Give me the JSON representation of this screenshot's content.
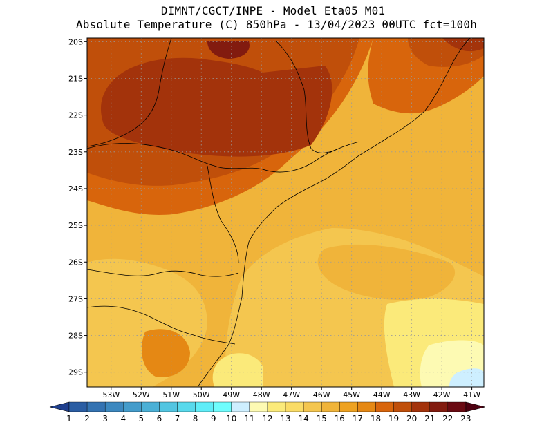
{
  "header": {
    "line1": "DIMNT/CGCT/INPE -  Model Eta05_M01_",
    "line2": "Absolute Temperature (C) 850hPa -  13/04/2023 00UTC fct=100h"
  },
  "map": {
    "lat_labels": [
      "20S",
      "21S",
      "22S",
      "23S",
      "24S",
      "25S",
      "26S",
      "27S",
      "28S",
      "29S"
    ],
    "lon_labels": [
      "53W",
      "52W",
      "51W",
      "50W",
      "49W",
      "48W",
      "47W",
      "46W",
      "45W",
      "44W",
      "43W",
      "42W",
      "41W"
    ],
    "lat_range": [
      -29.4,
      -19.9
    ],
    "lon_range": [
      -53.8,
      -40.6
    ]
  },
  "colorbar": {
    "labels": [
      "1",
      "2",
      "3",
      "4",
      "5",
      "6",
      "7",
      "8",
      "9",
      "10",
      "11",
      "12",
      "13",
      "14",
      "15",
      "16",
      "17",
      "18",
      "19",
      "20",
      "21",
      "22",
      "23"
    ],
    "colors": [
      "#1f3f8e",
      "#2a5da3",
      "#3473b2",
      "#3c88bf",
      "#449ccb",
      "#4bb0d6",
      "#52c5e1",
      "#58d9ec",
      "#5fedf8",
      "#6ffdfd",
      "#ceefff",
      "#fdfab3",
      "#fbea7a",
      "#fadc66",
      "#f4c64f",
      "#f0b43a",
      "#eea221",
      "#e58814",
      "#d8650c",
      "#c04f0a",
      "#a3330b",
      "#821b0f",
      "#6a0a12",
      "#4d0010"
    ]
  }
}
